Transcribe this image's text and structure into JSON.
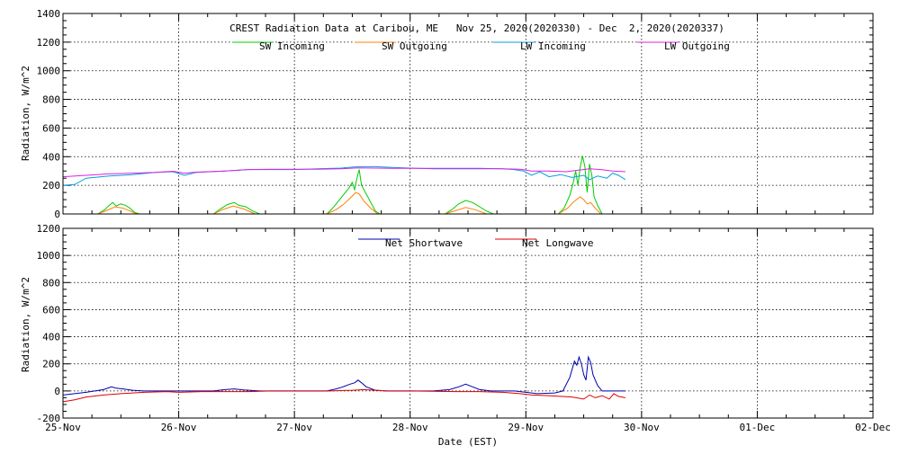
{
  "chart_data": [
    {
      "type": "line",
      "title": "CREST Radiation Data at Caribou, ME   Nov 25, 2020(2020330) - Dec  2, 2020(2020337)",
      "xlabel": "",
      "ylabel": "Radiation, W/m^2",
      "xlim": [
        "2020-11-25",
        "2020-12-02"
      ],
      "ylim": [
        0,
        1400
      ],
      "yticks": [
        0,
        200,
        400,
        600,
        800,
        1000,
        1200,
        1400
      ],
      "grid": true,
      "legend_position": "top",
      "series": [
        {
          "name": "SW Incoming",
          "color": "#00cc00",
          "points": [
            [
              0.3,
              0
            ],
            [
              0.36,
              30
            ],
            [
              0.4,
              60
            ],
            [
              0.43,
              80
            ],
            [
              0.46,
              55
            ],
            [
              0.5,
              70
            ],
            [
              0.54,
              60
            ],
            [
              0.58,
              40
            ],
            [
              0.62,
              10
            ],
            [
              0.66,
              0
            ],
            [
              1.3,
              0
            ],
            [
              1.36,
              35
            ],
            [
              1.42,
              65
            ],
            [
              1.48,
              80
            ],
            [
              1.52,
              60
            ],
            [
              1.58,
              50
            ],
            [
              1.64,
              20
            ],
            [
              1.7,
              0
            ],
            [
              2.28,
              0
            ],
            [
              2.33,
              40
            ],
            [
              2.38,
              90
            ],
            [
              2.43,
              140
            ],
            [
              2.47,
              180
            ],
            [
              2.5,
              220
            ],
            [
              2.52,
              170
            ],
            [
              2.54,
              250
            ],
            [
              2.56,
              310
            ],
            [
              2.58,
              200
            ],
            [
              2.62,
              140
            ],
            [
              2.66,
              80
            ],
            [
              2.7,
              20
            ],
            [
              2.74,
              0
            ],
            [
              3.3,
              0
            ],
            [
              3.36,
              30
            ],
            [
              3.42,
              70
            ],
            [
              3.48,
              95
            ],
            [
              3.54,
              80
            ],
            [
              3.6,
              50
            ],
            [
              3.66,
              20
            ],
            [
              3.72,
              0
            ],
            [
              4.28,
              0
            ],
            [
              4.33,
              40
            ],
            [
              4.38,
              130
            ],
            [
              4.41,
              220
            ],
            [
              4.43,
              300
            ],
            [
              4.45,
              200
            ],
            [
              4.47,
              330
            ],
            [
              4.49,
              405
            ],
            [
              4.51,
              330
            ],
            [
              4.53,
              150
            ],
            [
              4.55,
              350
            ],
            [
              4.57,
              270
            ],
            [
              4.59,
              120
            ],
            [
              4.62,
              60
            ],
            [
              4.66,
              0
            ]
          ]
        },
        {
          "name": "SW Outgoing",
          "color": "#ff7f00",
          "points": [
            [
              0.3,
              0
            ],
            [
              0.38,
              25
            ],
            [
              0.45,
              50
            ],
            [
              0.52,
              40
            ],
            [
              0.58,
              20
            ],
            [
              0.64,
              0
            ],
            [
              1.3,
              0
            ],
            [
              1.38,
              30
            ],
            [
              1.47,
              55
            ],
            [
              1.56,
              35
            ],
            [
              1.66,
              0
            ],
            [
              2.28,
              0
            ],
            [
              2.36,
              30
            ],
            [
              2.43,
              70
            ],
            [
              2.48,
              110
            ],
            [
              2.53,
              150
            ],
            [
              2.56,
              140
            ],
            [
              2.6,
              90
            ],
            [
              2.66,
              40
            ],
            [
              2.72,
              0
            ],
            [
              3.3,
              0
            ],
            [
              3.4,
              25
            ],
            [
              3.48,
              45
            ],
            [
              3.56,
              30
            ],
            [
              3.66,
              0
            ],
            [
              4.28,
              0
            ],
            [
              4.36,
              40
            ],
            [
              4.42,
              90
            ],
            [
              4.47,
              120
            ],
            [
              4.5,
              100
            ],
            [
              4.53,
              70
            ],
            [
              4.56,
              80
            ],
            [
              4.6,
              40
            ],
            [
              4.65,
              0
            ]
          ]
        },
        {
          "name": "LW Incoming",
          "color": "#00a0e0",
          "points": [
            [
              0.0,
              200
            ],
            [
              0.1,
              205
            ],
            [
              0.2,
              250
            ],
            [
              0.4,
              265
            ],
            [
              0.6,
              275
            ],
            [
              0.8,
              290
            ],
            [
              0.95,
              295
            ],
            [
              1.05,
              270
            ],
            [
              1.15,
              290
            ],
            [
              1.4,
              300
            ],
            [
              1.6,
              310
            ],
            [
              1.8,
              310
            ],
            [
              2.0,
              310
            ],
            [
              2.2,
              315
            ],
            [
              2.4,
              320
            ],
            [
              2.55,
              330
            ],
            [
              2.7,
              330
            ],
            [
              2.85,
              325
            ],
            [
              3.0,
              320
            ],
            [
              3.2,
              315
            ],
            [
              3.4,
              315
            ],
            [
              3.6,
              315
            ],
            [
              3.8,
              315
            ],
            [
              3.9,
              310
            ],
            [
              3.98,
              300
            ],
            [
              4.05,
              270
            ],
            [
              4.12,
              295
            ],
            [
              4.2,
              260
            ],
            [
              4.3,
              275
            ],
            [
              4.4,
              255
            ],
            [
              4.5,
              270
            ],
            [
              4.55,
              240
            ],
            [
              4.62,
              265
            ],
            [
              4.7,
              250
            ],
            [
              4.75,
              285
            ],
            [
              4.8,
              270
            ],
            [
              4.86,
              240
            ]
          ]
        },
        {
          "name": "LW Outgoing",
          "color": "#e020e0",
          "points": [
            [
              0.0,
              260
            ],
            [
              0.2,
              270
            ],
            [
              0.4,
              280
            ],
            [
              0.6,
              285
            ],
            [
              0.8,
              290
            ],
            [
              0.95,
              298
            ],
            [
              1.05,
              285
            ],
            [
              1.15,
              292
            ],
            [
              1.4,
              300
            ],
            [
              1.6,
              310
            ],
            [
              1.8,
              312
            ],
            [
              2.0,
              312
            ],
            [
              2.2,
              312
            ],
            [
              2.4,
              315
            ],
            [
              2.55,
              322
            ],
            [
              2.7,
              320
            ],
            [
              2.85,
              318
            ],
            [
              3.0,
              318
            ],
            [
              3.2,
              318
            ],
            [
              3.4,
              318
            ],
            [
              3.6,
              318
            ],
            [
              3.8,
              316
            ],
            [
              3.95,
              312
            ],
            [
              4.05,
              300
            ],
            [
              4.2,
              300
            ],
            [
              4.35,
              295
            ],
            [
              4.45,
              305
            ],
            [
              4.55,
              315
            ],
            [
              4.65,
              310
            ],
            [
              4.75,
              300
            ],
            [
              4.86,
              295
            ]
          ]
        }
      ]
    },
    {
      "type": "line",
      "xlabel": "Date (EST)",
      "ylabel": "Radiation, W/m^2",
      "xlim": [
        "2020-11-25",
        "2020-12-02"
      ],
      "ylim": [
        -200,
        1200
      ],
      "yticks": [
        -200,
        0,
        200,
        400,
        600,
        800,
        1000,
        1200
      ],
      "xticks": [
        "25-Nov",
        "26-Nov",
        "27-Nov",
        "28-Nov",
        "29-Nov",
        "30-Nov",
        "01-Dec",
        "02-Dec"
      ],
      "grid": true,
      "legend_position": "top",
      "series": [
        {
          "name": "Net Shortwave",
          "color": "#0000b0",
          "points": [
            [
              0.0,
              -30
            ],
            [
              0.2,
              -10
            ],
            [
              0.35,
              10
            ],
            [
              0.42,
              30
            ],
            [
              0.46,
              20
            ],
            [
              0.52,
              15
            ],
            [
              0.6,
              5
            ],
            [
              0.7,
              0
            ],
            [
              1.0,
              0
            ],
            [
              1.3,
              0
            ],
            [
              1.4,
              10
            ],
            [
              1.48,
              15
            ],
            [
              1.56,
              8
            ],
            [
              1.7,
              0
            ],
            [
              2.0,
              0
            ],
            [
              2.28,
              0
            ],
            [
              2.36,
              15
            ],
            [
              2.42,
              30
            ],
            [
              2.48,
              50
            ],
            [
              2.52,
              60
            ],
            [
              2.55,
              80
            ],
            [
              2.58,
              60
            ],
            [
              2.62,
              30
            ],
            [
              2.7,
              5
            ],
            [
              2.8,
              0
            ],
            [
              3.2,
              0
            ],
            [
              3.34,
              10
            ],
            [
              3.42,
              30
            ],
            [
              3.48,
              50
            ],
            [
              3.54,
              30
            ],
            [
              3.6,
              10
            ],
            [
              3.7,
              0
            ],
            [
              3.9,
              0
            ],
            [
              4.0,
              -10
            ],
            [
              4.1,
              -20
            ],
            [
              4.25,
              -15
            ],
            [
              4.32,
              0
            ],
            [
              4.38,
              100
            ],
            [
              4.42,
              220
            ],
            [
              4.44,
              190
            ],
            [
              4.46,
              250
            ],
            [
              4.48,
              200
            ],
            [
              4.5,
              120
            ],
            [
              4.52,
              80
            ],
            [
              4.54,
              250
            ],
            [
              4.56,
              210
            ],
            [
              4.58,
              120
            ],
            [
              4.62,
              40
            ],
            [
              4.66,
              0
            ],
            [
              4.86,
              0
            ]
          ]
        },
        {
          "name": "Net Longwave",
          "color": "#e00000",
          "points": [
            [
              0.0,
              -80
            ],
            [
              0.1,
              -65
            ],
            [
              0.2,
              -45
            ],
            [
              0.35,
              -30
            ],
            [
              0.5,
              -20
            ],
            [
              0.7,
              -10
            ],
            [
              0.9,
              -5
            ],
            [
              1.0,
              -10
            ],
            [
              1.2,
              -5
            ],
            [
              1.4,
              -5
            ],
            [
              1.6,
              -5
            ],
            [
              1.8,
              0
            ],
            [
              2.0,
              0
            ],
            [
              2.3,
              0
            ],
            [
              2.5,
              5
            ],
            [
              2.6,
              10
            ],
            [
              2.8,
              0
            ],
            [
              3.0,
              0
            ],
            [
              3.4,
              -5
            ],
            [
              3.6,
              -5
            ],
            [
              3.8,
              -10
            ],
            [
              3.95,
              -20
            ],
            [
              4.05,
              -30
            ],
            [
              4.2,
              -35
            ],
            [
              4.3,
              -40
            ],
            [
              4.4,
              -45
            ],
            [
              4.5,
              -60
            ],
            [
              4.55,
              -30
            ],
            [
              4.6,
              -50
            ],
            [
              4.66,
              -35
            ],
            [
              4.72,
              -60
            ],
            [
              4.76,
              -20
            ],
            [
              4.8,
              -40
            ],
            [
              4.86,
              -50
            ]
          ]
        }
      ]
    }
  ]
}
